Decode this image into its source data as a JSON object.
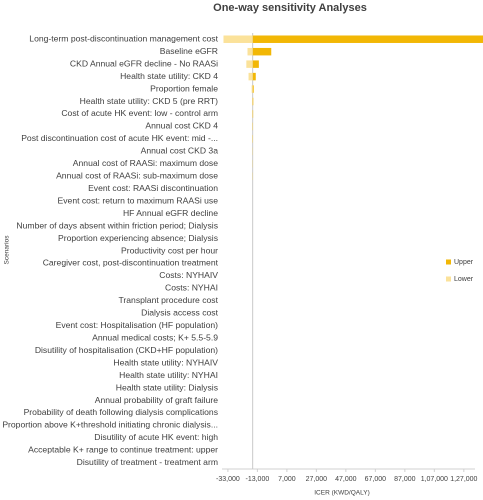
{
  "chart_data": {
    "type": "tornado",
    "title": "One-way sensitivity Analyses",
    "y_axis_label": "Scenarios",
    "x_axis_label": "ICER (KWD/QALY)",
    "categories": [
      "Long-term post-discontinuation management cost",
      "Baseline eGFR",
      "CKD Annual eGFR decline - No RAASi",
      "Health state utility: CKD 4",
      "Proportion female",
      "Health state utility: CKD 5 (pre RRT)",
      "Cost of acute HK event: low - control arm",
      "Annual cost CKD 4",
      "Post discontinuation cost of acute HK event: mid -...",
      "Annual cost CKD 3a",
      "Annual cost of RAASi: maximum dose",
      "Annual cost of RAASi: sub-maximum dose",
      "Event cost: RAASi discontinuation",
      "Event cost: return to maximum RAASi use",
      "HF Annual eGFR decline",
      "Number of days absent within friction period; Dialysis",
      "Proportion experiencing absence; Dialysis",
      "Productivity cost per hour",
      "Caregiver cost, post-discontinuation treatment",
      "Costs: NYHAIV",
      "Costs: NYHAI",
      "Transplant procedure cost",
      "Dialysis access cost",
      "Event cost: Hospitalisation (HF population)",
      "Annual medical costs; K+ 5.5-5.9",
      "Disutility of hospitalisation (CKD+HF population)",
      "Health state utility: NYHAIV",
      "Health state utility: NYHAI",
      "Health state utility: Dialysis",
      "Annual probability of graft failure",
      "Probability of death following dialysis complications",
      "Proportion above K+threshold initiating chronic dialysis...",
      "Disutility of acute HK event: high",
      "Acceptable K+ range to continue treatment: upper",
      "Disutility of treatment - treatment arm"
    ],
    "series": [
      {
        "name": "Upper",
        "color": "#f2b705",
        "values": [
          140000,
          -3600,
          -12000,
          -14100,
          -15500,
          -15800,
          -15900,
          -16000,
          -16000,
          -16100,
          -16100,
          -16100,
          -16200,
          -16200,
          -16200,
          -16200,
          -16200,
          -16200,
          -16200,
          -16200,
          -16200,
          -16200,
          -16200,
          -16200,
          -16200,
          -16200,
          -16200,
          -16200,
          -16200,
          -16200,
          -16200,
          -16200,
          -16200,
          -16200,
          -16200
        ]
      },
      {
        "name": "Lower",
        "color": "#fbe29a",
        "values": [
          -36000,
          -19700,
          -20500,
          -19000,
          -16900,
          -16600,
          -16500,
          -16400,
          -16400,
          -16300,
          -16300,
          -16300,
          -16200,
          -16200,
          -16200,
          -16200,
          -16200,
          -16200,
          -16200,
          -16200,
          -16200,
          -16200,
          -16200,
          -16200,
          -16200,
          -16200,
          -16200,
          -16200,
          -16200,
          -16200,
          -16200,
          -16200,
          -16200,
          -16200,
          -16200
        ]
      }
    ],
    "axis_crossing": -16200,
    "xlim": [
      -37000,
      140000
    ],
    "xticks": [
      {
        "value": -33000,
        "label": "-33,000"
      },
      {
        "value": -13000,
        "label": "-13,000"
      },
      {
        "value": 7000,
        "label": "7,000"
      },
      {
        "value": 27000,
        "label": "27,000"
      },
      {
        "value": 47000,
        "label": "47,000"
      },
      {
        "value": 67000,
        "label": "67,000"
      },
      {
        "value": 87000,
        "label": "87,000"
      },
      {
        "value": 107000,
        "label": "1,07,000"
      },
      {
        "value": 127000,
        "label": "1,27,000"
      }
    ],
    "legend_position": "right"
  }
}
